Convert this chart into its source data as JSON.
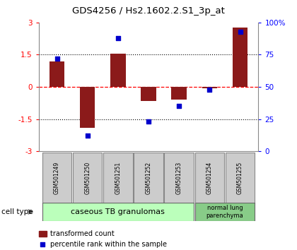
{
  "title": "GDS4256 / Hs2.1602.2.S1_3p_at",
  "samples": [
    "GSM501249",
    "GSM501250",
    "GSM501251",
    "GSM501252",
    "GSM501253",
    "GSM501254",
    "GSM501255"
  ],
  "transformed_count": [
    1.2,
    -1.9,
    1.55,
    -0.65,
    -0.6,
    -0.08,
    2.75
  ],
  "percentile_rank": [
    72,
    12,
    88,
    23,
    35,
    48,
    93
  ],
  "ylim_left": [
    -3,
    3
  ],
  "ylim_right": [
    0,
    100
  ],
  "yticks_left": [
    -3,
    -1.5,
    0,
    1.5,
    3
  ],
  "yticks_right": [
    0,
    25,
    50,
    75,
    100
  ],
  "ytick_labels_right": [
    "0",
    "25",
    "50",
    "75",
    "100%"
  ],
  "bar_color": "#8B1A1A",
  "dot_color": "#0000CC",
  "bar_width": 0.5,
  "group1_label": "caseous TB granulomas",
  "group2_label": "normal lung\nparenchyma",
  "cell_type_label": "cell type",
  "legend_bar_label": "transformed count",
  "legend_dot_label": "percentile rank within the sample",
  "group1_color": "#BBFFBB",
  "group2_color": "#88CC88",
  "sample_box_color": "#CCCCCC",
  "sample_box_edge": "#888888"
}
